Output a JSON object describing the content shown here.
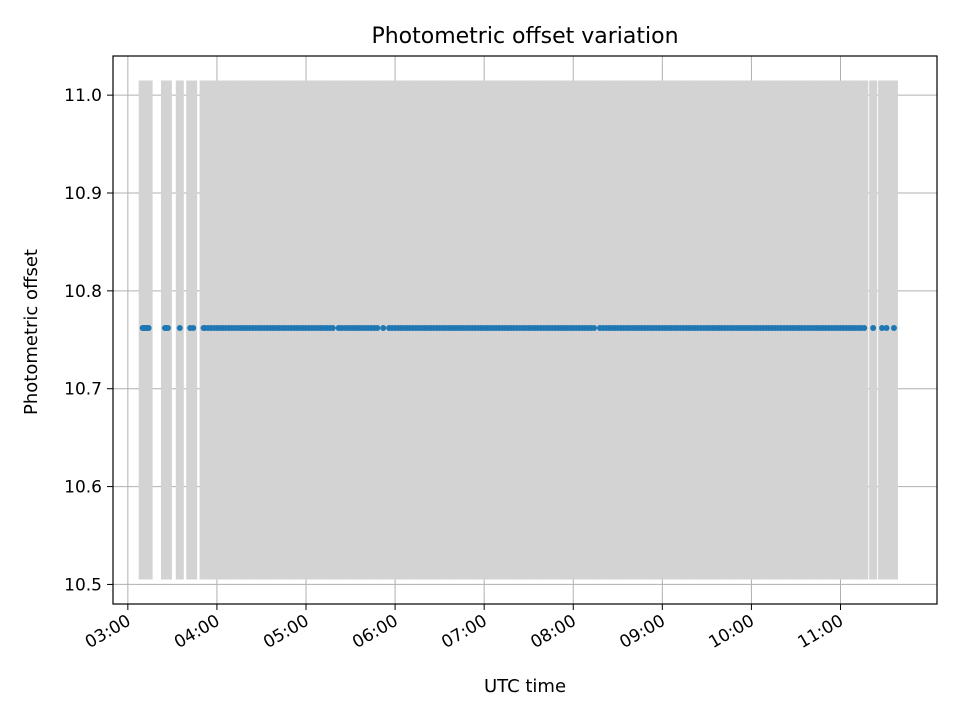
{
  "chart_data": {
    "type": "scatter",
    "title": "Photometric offset variation",
    "xlabel": "UTC time",
    "ylabel": "Photometric offset",
    "x_type": "time",
    "xlim": [
      "02:50",
      "12:05"
    ],
    "ylim": [
      10.48,
      11.04
    ],
    "x_ticks": [
      "03:00",
      "04:00",
      "05:00",
      "06:00",
      "07:00",
      "08:00",
      "09:00",
      "10:00",
      "11:00"
    ],
    "y_ticks": [
      "10.5",
      "10.6",
      "10.7",
      "10.8",
      "10.9",
      "11.0"
    ],
    "grid": true,
    "colors": {
      "points": "#1f77b4",
      "error_bars": "#d3d3d3",
      "grid": "#b0b0b0"
    },
    "error_band": {
      "lower": 10.505,
      "upper": 11.015
    },
    "series": [
      {
        "values": {
          "y": 10.762
        },
        "x": [
          "03:10",
          "03:11",
          "03:12",
          "03:13",
          "03:14",
          "03:25",
          "03:26",
          "03:27",
          "03:35",
          "03:42",
          "03:44",
          "03:51",
          "03:52",
          "03:54",
          "03:56",
          "03:58",
          "04:00",
          "04:02",
          "04:04",
          "04:06",
          "04:08",
          "04:10",
          "04:12",
          "04:14",
          "04:16",
          "04:18",
          "04:20",
          "04:22",
          "04:24",
          "04:26",
          "04:28",
          "04:30",
          "04:32",
          "04:34",
          "04:36",
          "04:38",
          "04:40",
          "04:42",
          "04:44",
          "04:46",
          "04:48",
          "04:50",
          "04:52",
          "04:54",
          "04:56",
          "04:58",
          "05:00",
          "05:02",
          "05:04",
          "05:06",
          "05:08",
          "05:10",
          "05:12",
          "05:14",
          "05:16",
          "05:18",
          "05:22",
          "05:24",
          "05:26",
          "05:28",
          "05:30",
          "05:32",
          "05:34",
          "05:36",
          "05:38",
          "05:40",
          "05:42",
          "05:44",
          "05:46",
          "05:48",
          "05:52",
          "05:56",
          "05:58",
          "06:00",
          "06:02",
          "06:04",
          "06:06",
          "06:08",
          "06:10",
          "06:12",
          "06:14",
          "06:16",
          "06:18",
          "06:20",
          "06:22",
          "06:24",
          "06:26",
          "06:28",
          "06:30",
          "06:32",
          "06:34",
          "06:36",
          "06:38",
          "06:40",
          "06:42",
          "06:44",
          "06:46",
          "06:48",
          "06:50",
          "06:52",
          "06:54",
          "06:56",
          "06:58",
          "07:00",
          "07:02",
          "07:04",
          "07:06",
          "07:08",
          "07:10",
          "07:12",
          "07:14",
          "07:16",
          "07:18",
          "07:20",
          "07:22",
          "07:24",
          "07:26",
          "07:28",
          "07:30",
          "07:32",
          "07:34",
          "07:36",
          "07:38",
          "07:40",
          "07:42",
          "07:44",
          "07:46",
          "07:48",
          "07:50",
          "07:52",
          "07:54",
          "07:56",
          "07:58",
          "08:00",
          "08:02",
          "08:04",
          "08:06",
          "08:08",
          "08:10",
          "08:12",
          "08:14",
          "08:18",
          "08:20",
          "08:22",
          "08:24",
          "08:26",
          "08:28",
          "08:30",
          "08:32",
          "08:34",
          "08:36",
          "08:38",
          "08:40",
          "08:42",
          "08:44",
          "08:46",
          "08:48",
          "08:50",
          "08:52",
          "08:54",
          "08:56",
          "08:58",
          "09:00",
          "09:02",
          "09:04",
          "09:06",
          "09:08",
          "09:10",
          "09:12",
          "09:14",
          "09:16",
          "09:18",
          "09:20",
          "09:22",
          "09:24",
          "09:26",
          "09:28",
          "09:30",
          "09:32",
          "09:34",
          "09:36",
          "09:38",
          "09:40",
          "09:42",
          "09:44",
          "09:46",
          "09:48",
          "09:50",
          "09:52",
          "09:54",
          "09:56",
          "09:58",
          "10:00",
          "10:02",
          "10:04",
          "10:06",
          "10:08",
          "10:10",
          "10:12",
          "10:14",
          "10:16",
          "10:18",
          "10:20",
          "10:22",
          "10:24",
          "10:26",
          "10:28",
          "10:30",
          "10:32",
          "10:34",
          "10:36",
          "10:38",
          "10:40",
          "10:42",
          "10:44",
          "10:46",
          "10:48",
          "10:50",
          "10:52",
          "10:54",
          "10:56",
          "10:58",
          "11:00",
          "11:02",
          "11:04",
          "11:06",
          "11:08",
          "11:10",
          "11:12",
          "11:14",
          "11:16",
          "11:22",
          "11:28",
          "11:31",
          "11:36"
        ]
      }
    ]
  }
}
